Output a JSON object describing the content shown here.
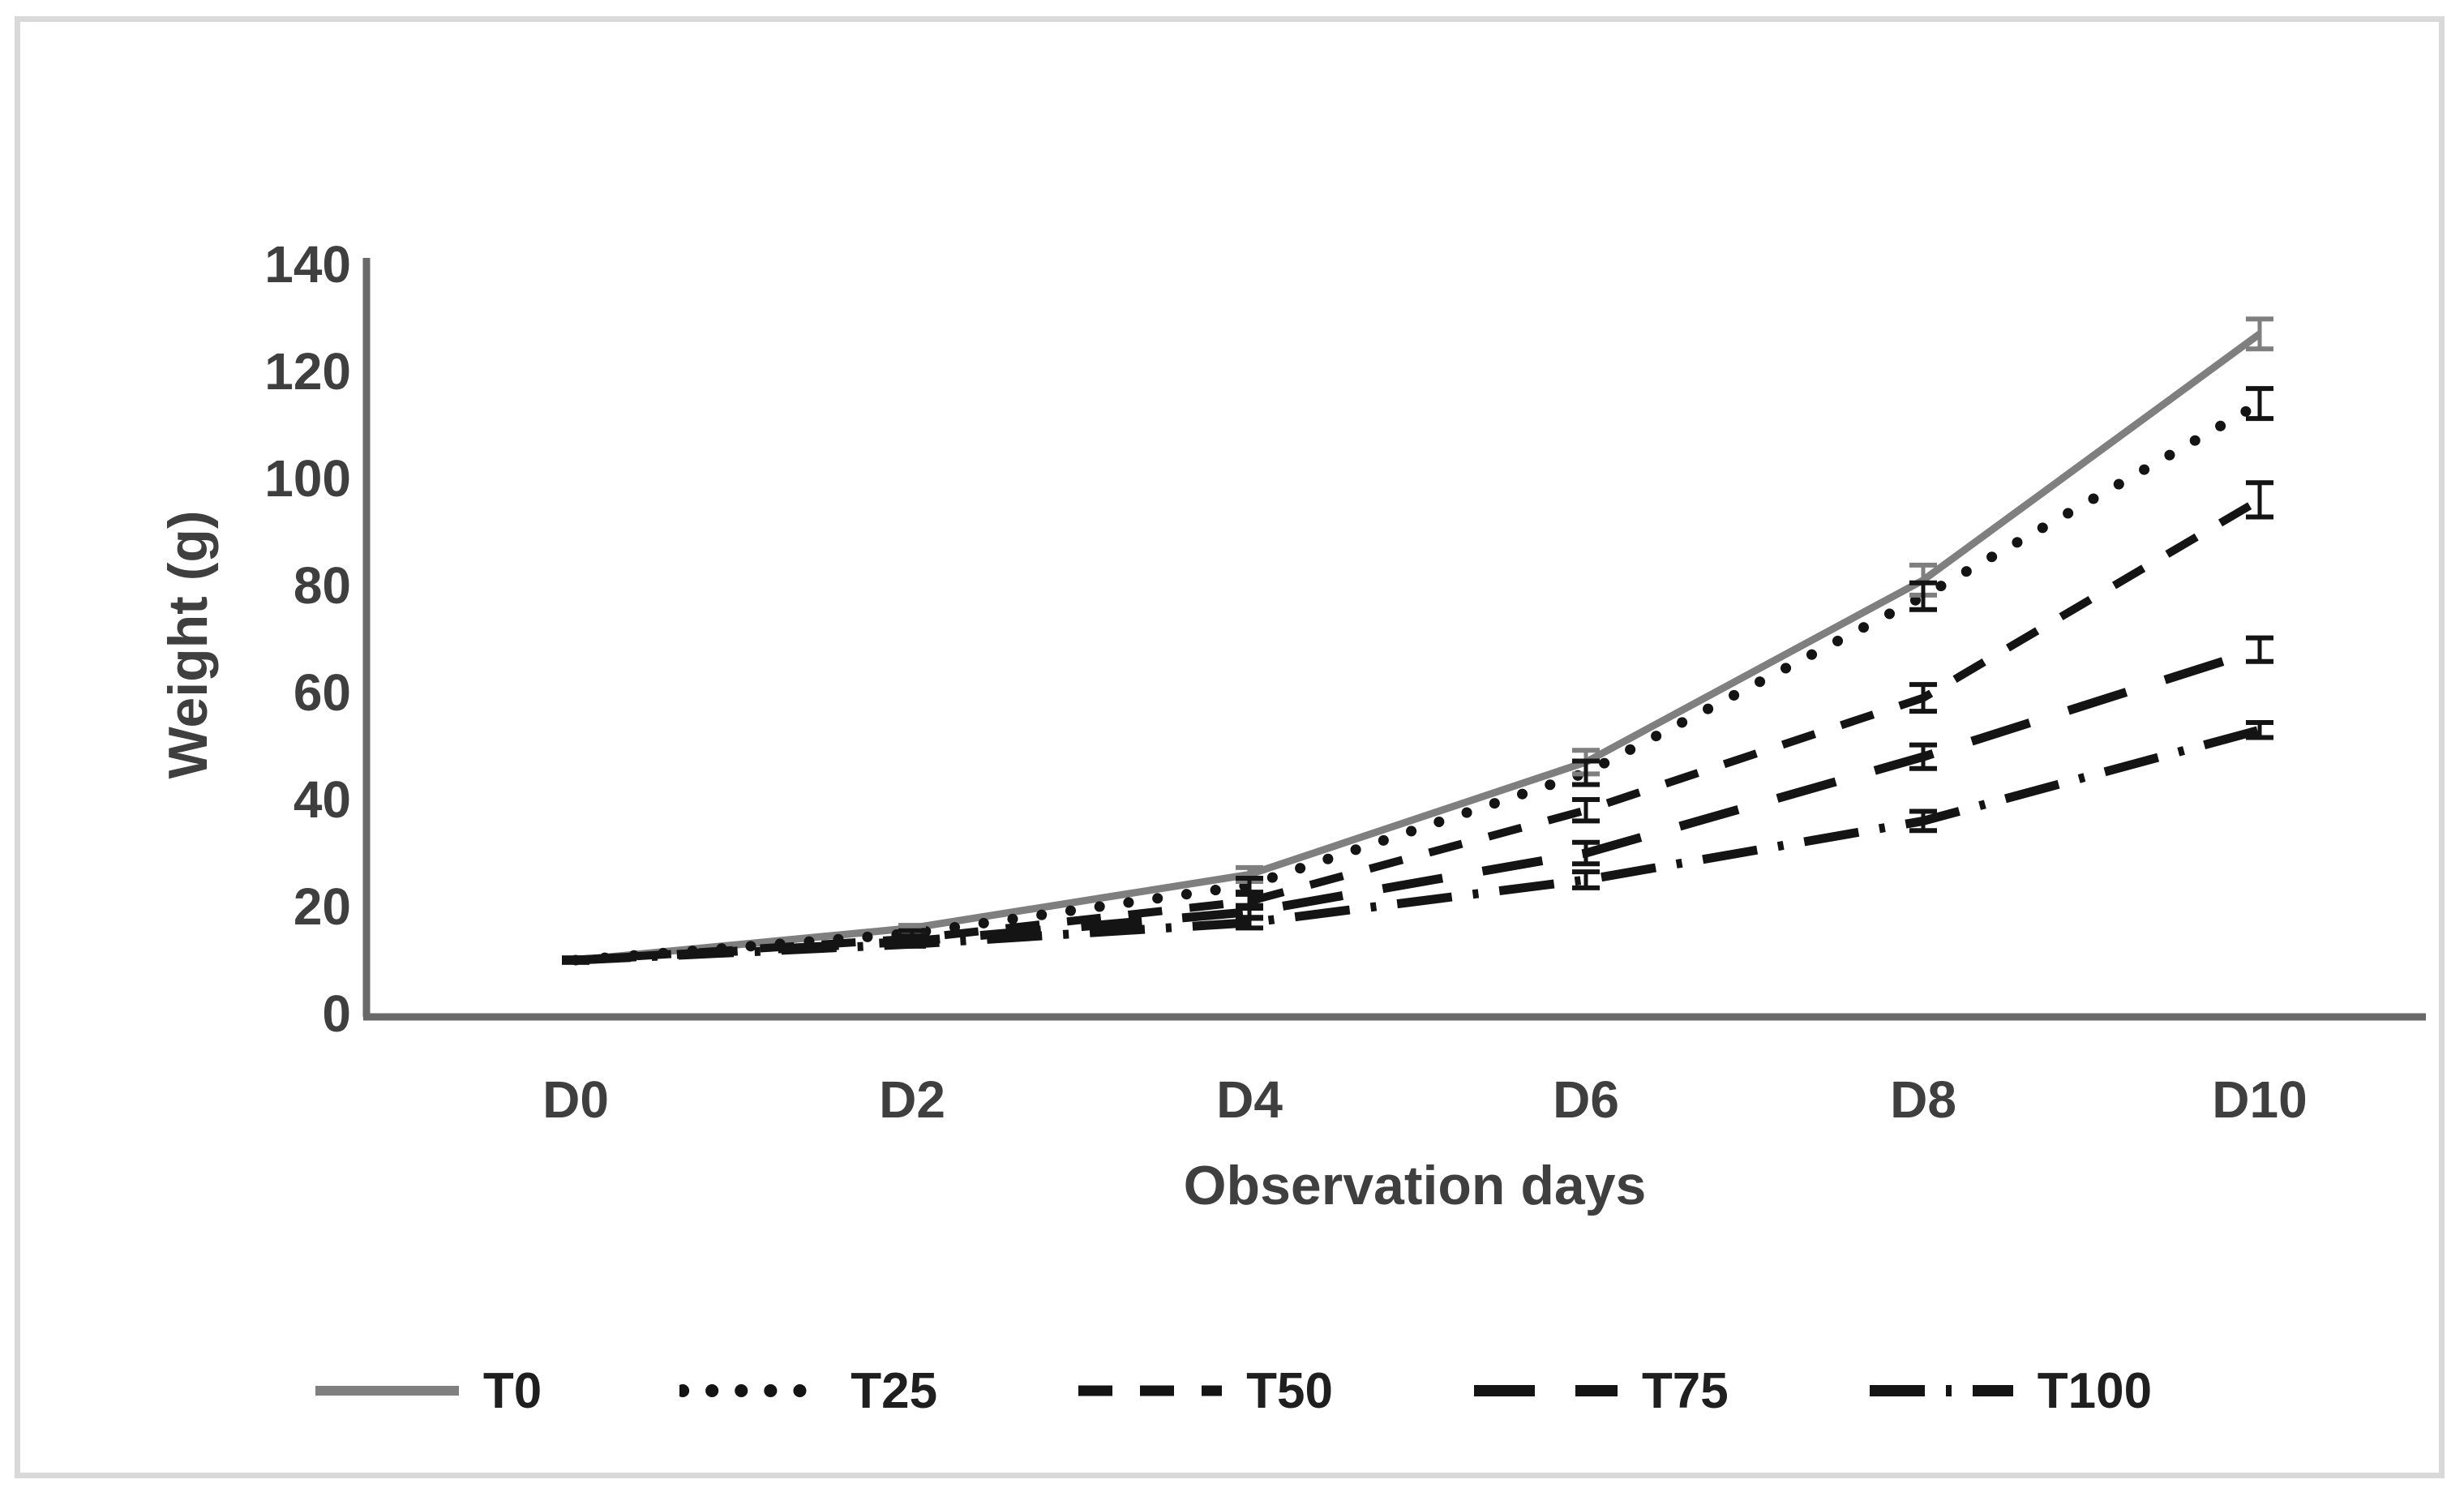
{
  "chart_data": {
    "type": "line",
    "title": "",
    "xlabel": "Observation days",
    "ylabel": "Weight (g)",
    "categories": [
      "D0",
      "D2",
      "D4",
      "D6",
      "D8",
      "D10"
    ],
    "y_ticks": [
      0,
      20,
      40,
      60,
      80,
      100,
      120,
      140
    ],
    "ylim": [
      0,
      140
    ],
    "grid": false,
    "legend_position": "bottom",
    "error_bars": true,
    "series": [
      {
        "name": "T0",
        "style": "solid",
        "color": "#7f7f7f",
        "values": [
          10,
          16,
          26,
          47,
          81,
          127
        ],
        "error": [
          0.4,
          0.5,
          1.3,
          2.2,
          2.8,
          2.8
        ]
      },
      {
        "name": "T25",
        "style": "dotted",
        "color": "#141414",
        "values": [
          10,
          15,
          24,
          45,
          78,
          114
        ],
        "error": [
          0.4,
          0.5,
          1.3,
          2.2,
          2.5,
          2.8
        ]
      },
      {
        "name": "T50",
        "style": "dashed",
        "color": "#141414",
        "values": [
          10,
          14,
          21,
          38,
          59,
          96
        ],
        "error": [
          0.4,
          0.5,
          1.3,
          2.0,
          2.5,
          3.2
        ]
      },
      {
        "name": "T75",
        "style": "long-dash",
        "color": "#141414",
        "values": [
          10,
          13.5,
          19,
          30,
          48,
          68
        ],
        "error": [
          0.4,
          0.5,
          1.2,
          2.0,
          2.2,
          2.2
        ]
      },
      {
        "name": "T100",
        "style": "long-dash-dot",
        "color": "#141414",
        "values": [
          10,
          13,
          17,
          25,
          36,
          53
        ],
        "error": [
          0.3,
          0.4,
          1.0,
          1.5,
          1.8,
          1.4
        ]
      }
    ]
  },
  "colors": {
    "background": "#ffffff",
    "frame": "#d9d9d9",
    "axis_line": "#696969",
    "tick_text": "#3f3f3f",
    "legend_text": "#1f1f1f"
  }
}
